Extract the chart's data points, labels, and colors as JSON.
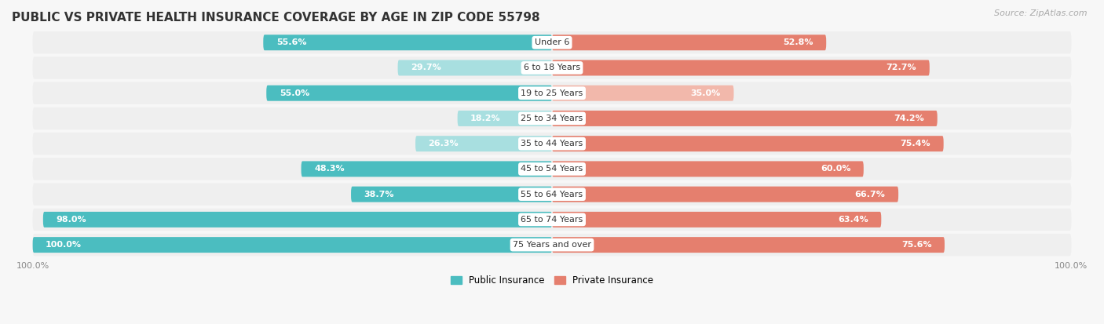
{
  "title": "PUBLIC VS PRIVATE HEALTH INSURANCE COVERAGE BY AGE IN ZIP CODE 55798",
  "source": "Source: ZipAtlas.com",
  "categories": [
    "Under 6",
    "6 to 18 Years",
    "19 to 25 Years",
    "25 to 34 Years",
    "35 to 44 Years",
    "45 to 54 Years",
    "55 to 64 Years",
    "65 to 74 Years",
    "75 Years and over"
  ],
  "public_values": [
    55.6,
    29.7,
    55.0,
    18.2,
    26.3,
    48.3,
    38.7,
    98.0,
    100.0
  ],
  "private_values": [
    52.8,
    72.7,
    35.0,
    74.2,
    75.4,
    60.0,
    66.7,
    63.4,
    75.6
  ],
  "public_color": "#4bbdc0",
  "private_color": "#e57f6e",
  "public_color_light": "#a8dfe0",
  "private_color_light": "#f2b8ab",
  "row_bg": "#efefef",
  "bg_color": "#f7f7f7",
  "max_value": 100.0,
  "label_fontsize": 8.0,
  "title_fontsize": 11,
  "source_fontsize": 8,
  "legend_fontsize": 8.5,
  "tick_fontsize": 8
}
